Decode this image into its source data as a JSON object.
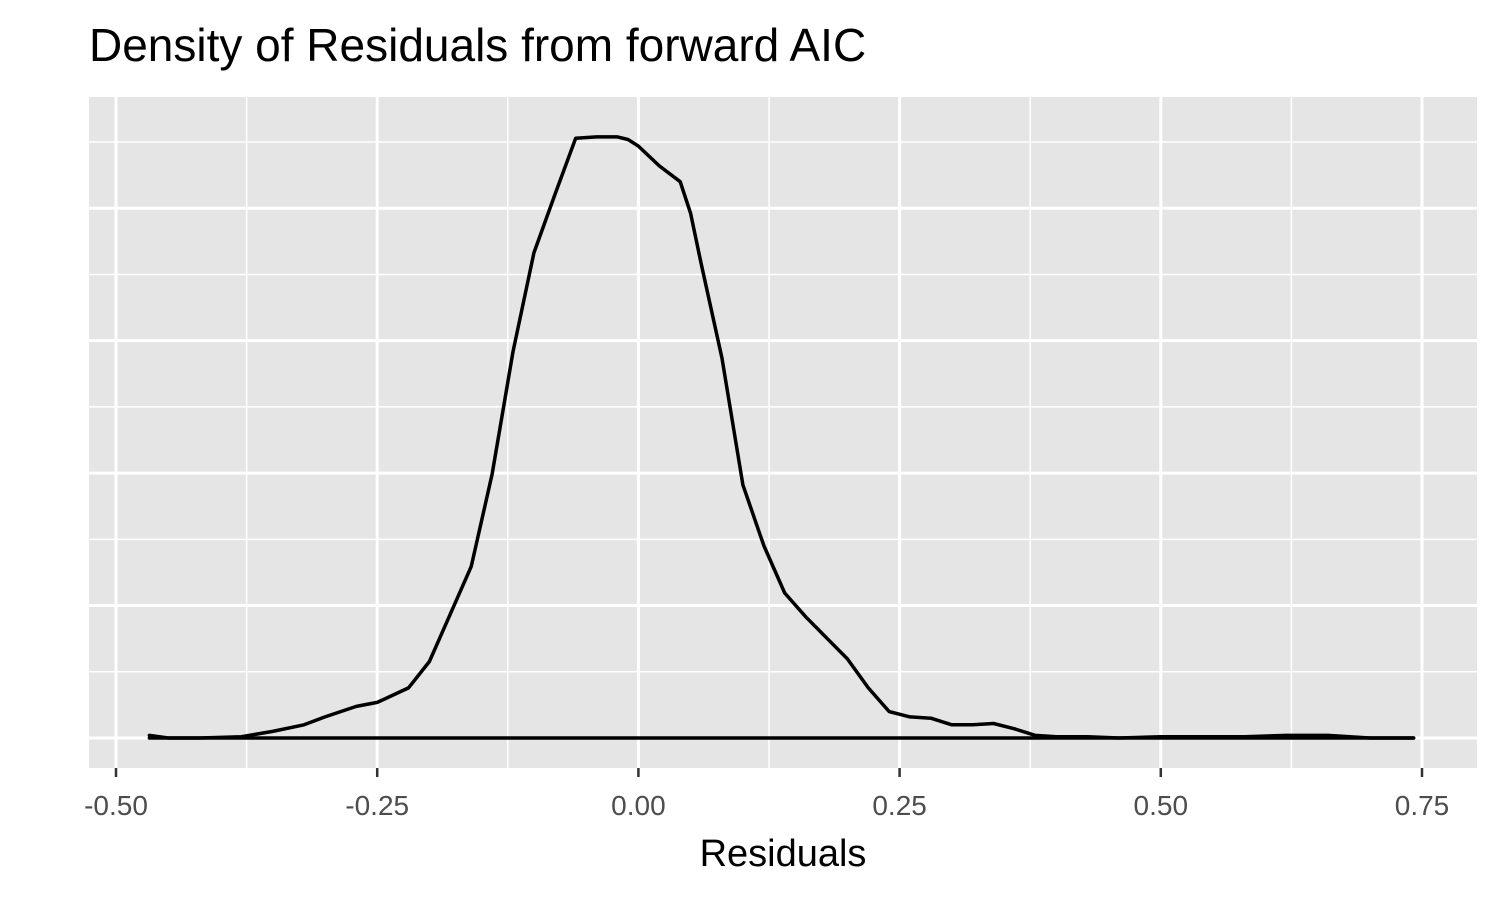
{
  "chart_data": {
    "type": "line",
    "title": "Density of Residuals from forward AIC",
    "xlabel": "Residuals",
    "ylabel": "",
    "xlim": [
      -0.5,
      0.75
    ],
    "ylim": [
      0,
      4.65
    ],
    "grid": true,
    "x_ticks": [
      -0.5,
      -0.25,
      0.0,
      0.25,
      0.5,
      0.75
    ],
    "x_tick_labels": [
      "-0.50",
      "-0.25",
      "0.00",
      "0.25",
      "0.50",
      "0.75"
    ],
    "y_minor_count": 10,
    "colors": {
      "line": "#000000",
      "panel": "#e5e5e5",
      "grid": "#ffffff"
    },
    "series": [
      {
        "x": [
          -0.468,
          -0.45,
          -0.42,
          -0.38,
          -0.35,
          -0.32,
          -0.3,
          -0.27,
          -0.25,
          -0.22,
          -0.2,
          -0.18,
          -0.16,
          -0.14,
          -0.12,
          -0.1,
          -0.08,
          -0.06,
          -0.04,
          -0.02,
          -0.01,
          0.0,
          0.02,
          0.04,
          0.05,
          0.06,
          0.08,
          0.1,
          0.12,
          0.14,
          0.16,
          0.18,
          0.2,
          0.22,
          0.24,
          0.26,
          0.28,
          0.3,
          0.32,
          0.34,
          0.36,
          0.38,
          0.4,
          0.43,
          0.46,
          0.5,
          0.54,
          0.58,
          0.62,
          0.66,
          0.7,
          0.742
        ],
        "y": [
          0.02,
          0.0,
          0.0,
          0.01,
          0.05,
          0.1,
          0.16,
          0.24,
          0.27,
          0.38,
          0.58,
          0.94,
          1.3,
          2.0,
          2.93,
          3.68,
          4.12,
          4.55,
          4.56,
          4.56,
          4.54,
          4.49,
          4.34,
          4.22,
          3.98,
          3.6,
          2.88,
          1.92,
          1.46,
          1.1,
          0.92,
          0.76,
          0.6,
          0.38,
          0.2,
          0.16,
          0.15,
          0.1,
          0.1,
          0.11,
          0.07,
          0.02,
          0.01,
          0.01,
          0.0,
          0.01,
          0.01,
          0.01,
          0.02,
          0.02,
          0.0,
          0.0
        ]
      },
      {
        "x": [
          -0.468,
          0.742
        ],
        "y": [
          0.0,
          0.0
        ]
      }
    ]
  }
}
